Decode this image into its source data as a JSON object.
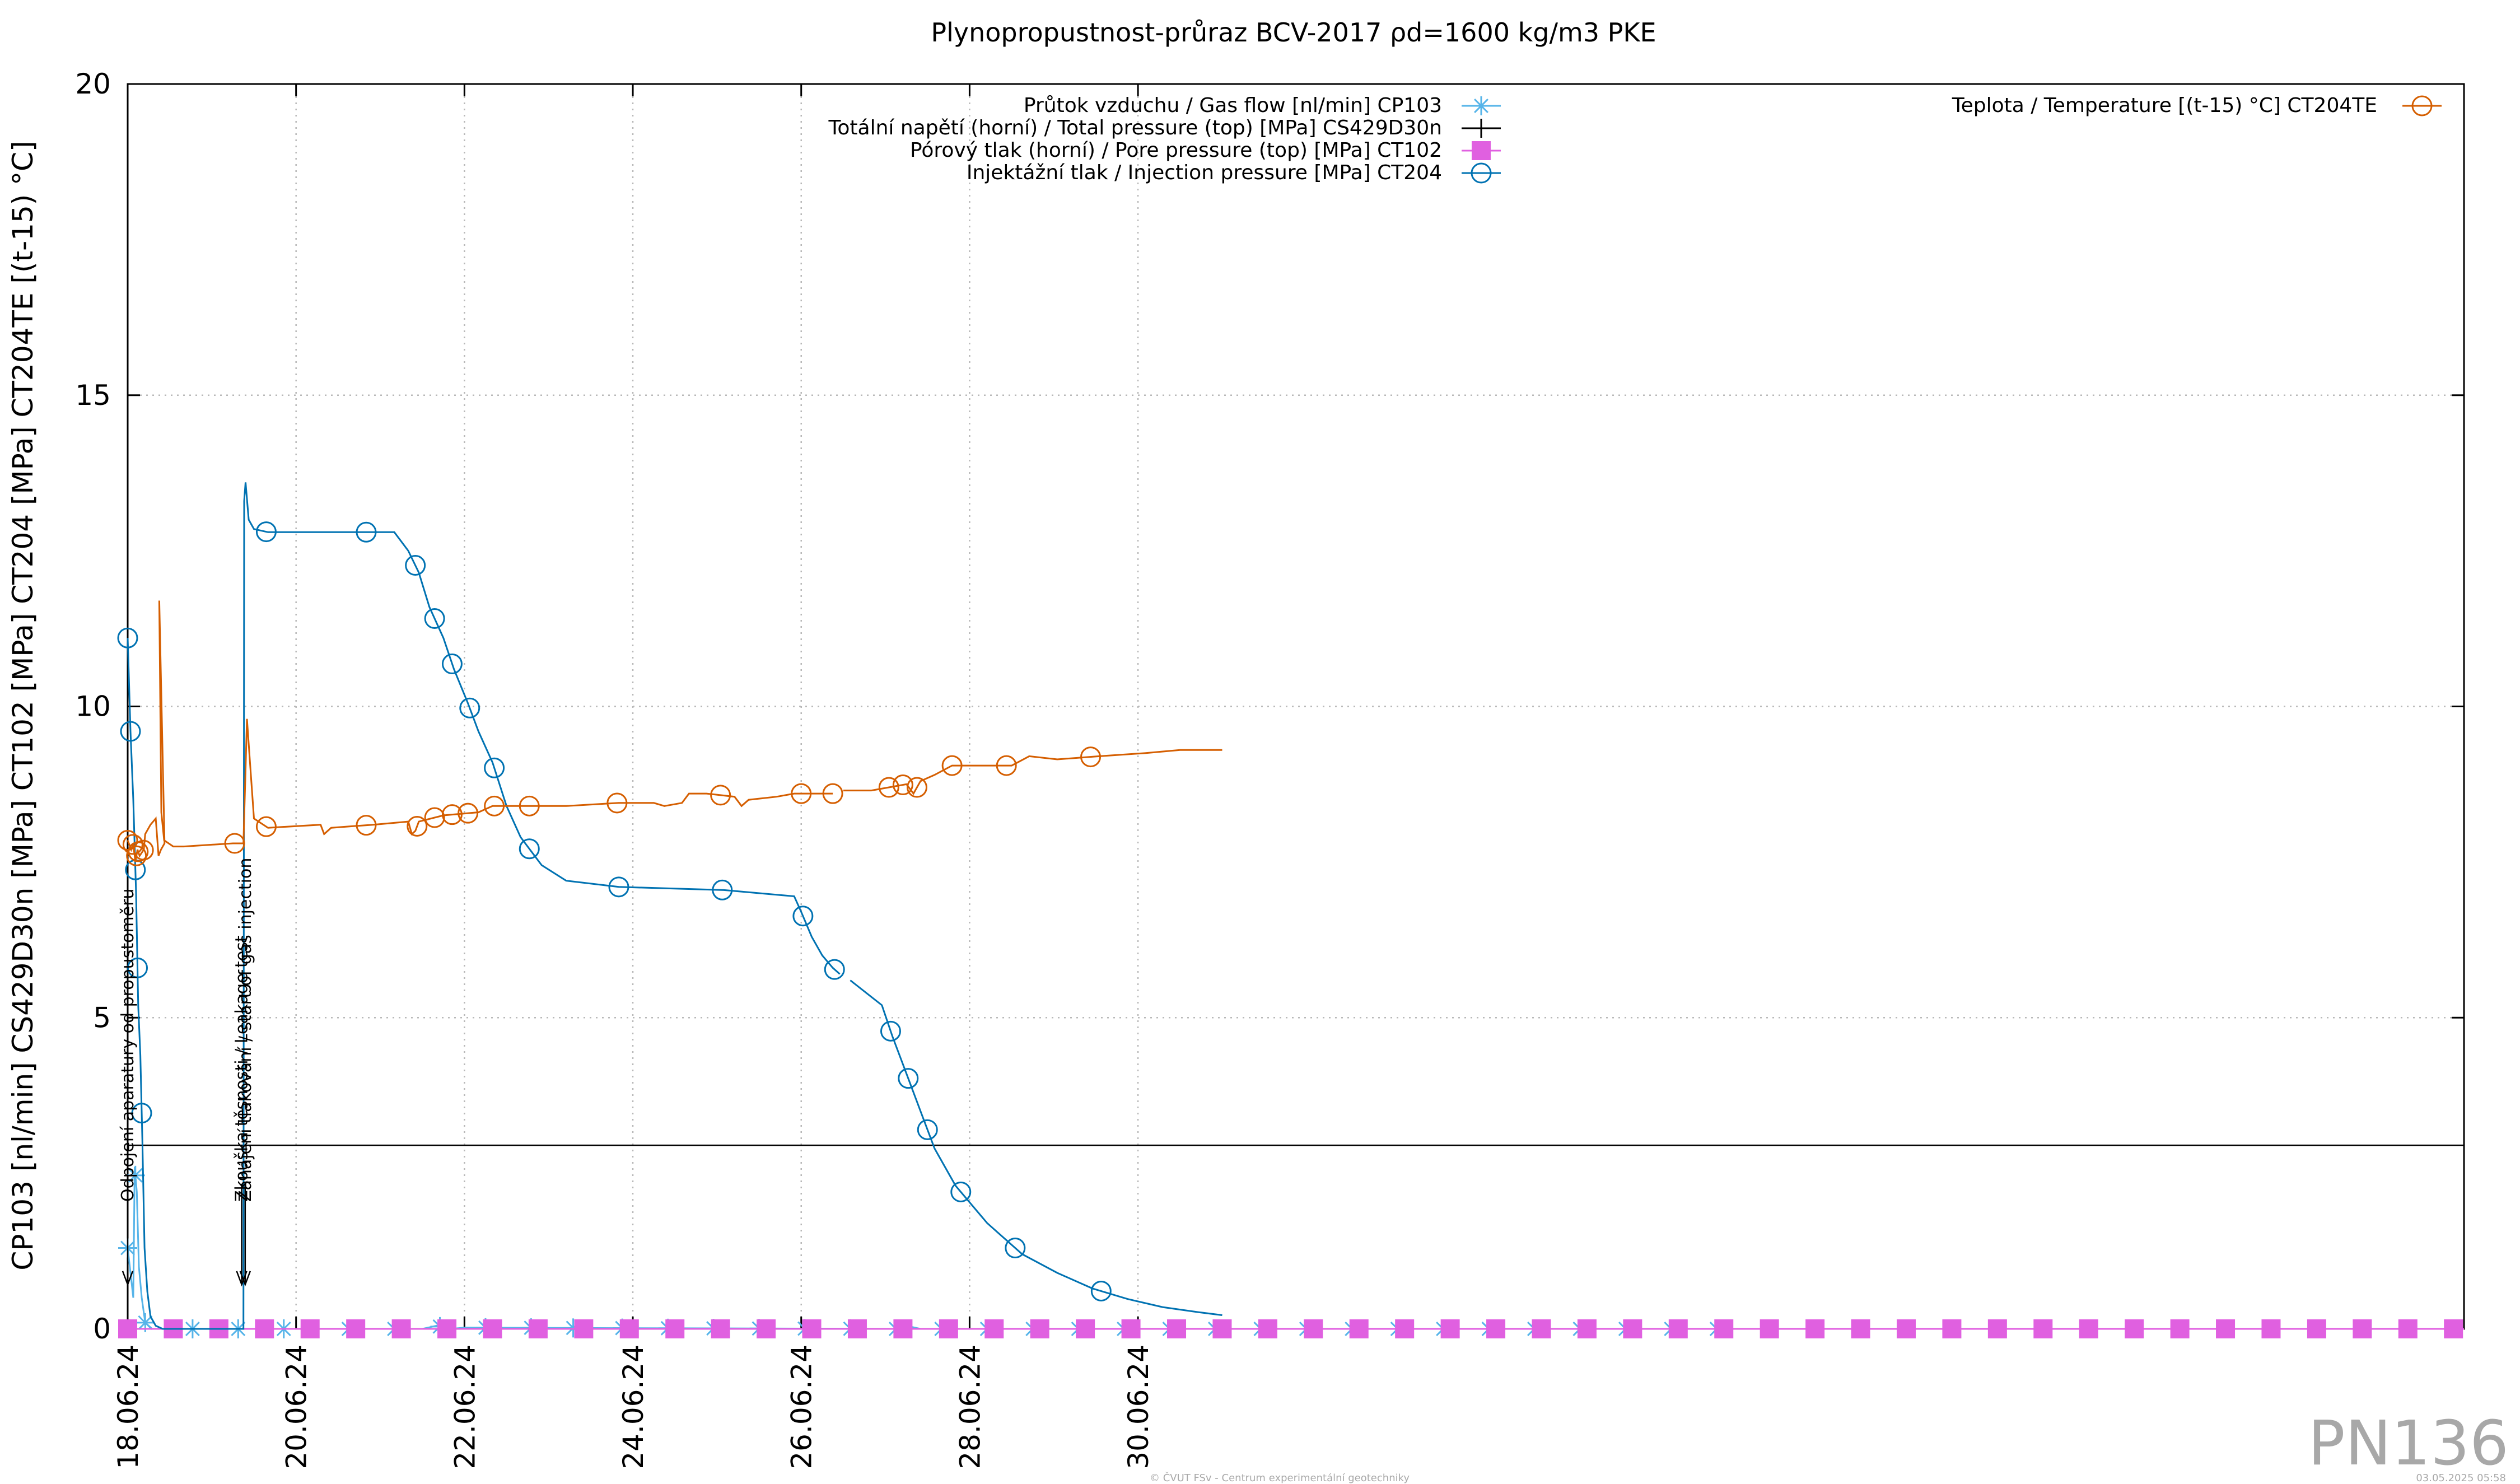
{
  "chart_data": {
    "type": "line",
    "title": "Plynopropustnost-průraz BCV-2017 ρd=1600 kg/m3 PKE",
    "ylabel": "CP103 [nl/min] CS429D30n [MPa] CT102 [MPa] CT204 [MPa] CT204TE [(t-15) °C]",
    "xlabel": "",
    "xlim": [
      0,
      666
    ],
    "ylim": [
      0,
      20
    ],
    "x_unit": "hours from 18.06.24 00:00",
    "x_ticks": [
      {
        "x": 0,
        "label": "18.06.24"
      },
      {
        "x": 48,
        "label": "20.06.24"
      },
      {
        "x": 96,
        "label": "22.06.24"
      },
      {
        "x": 144,
        "label": "24.06.24"
      },
      {
        "x": 192,
        "label": "26.06.24"
      },
      {
        "x": 240,
        "label": "28.06.24"
      },
      {
        "x": 288,
        "label": "30.06.24"
      }
    ],
    "y_ticks": [
      {
        "y": 0,
        "label": "0"
      },
      {
        "y": 5,
        "label": "5"
      },
      {
        "y": 10,
        "label": "10"
      },
      {
        "y": 15,
        "label": "15"
      },
      {
        "y": 20,
        "label": "20"
      }
    ],
    "grid": true,
    "legend_position": "top",
    "series": [
      {
        "name": "Průtok vzduchu / Gas flow [nl/min] CP103",
        "color": "#56b4e9",
        "marker": "star",
        "legend_group": "left",
        "points": [
          [
            0,
            1.3
          ],
          [
            1,
            0.8
          ],
          [
            1.6,
            0.5
          ],
          [
            2,
            2.6
          ],
          [
            2.6,
            2.2
          ],
          [
            3.2,
            1.0
          ],
          [
            4,
            0.5
          ],
          [
            5,
            0.1
          ],
          [
            7,
            0
          ],
          [
            50,
            0
          ],
          [
            84,
            0
          ],
          [
            88,
            0.05
          ],
          [
            92,
            0
          ],
          [
            96,
            0.02
          ],
          [
            220,
            0
          ],
          [
            222,
            0.05
          ],
          [
            226,
            0
          ],
          [
            232,
            0
          ]
        ],
        "marker_x": [
          0,
          2.2,
          5,
          18.5,
          31.5,
          44.5,
          63,
          76,
          89,
          102,
          115,
          127,
          141,
          154,
          167,
          180,
          193,
          206,
          219,
          232,
          245,
          258,
          271,
          284,
          297,
          310,
          323,
          336,
          349,
          362,
          375,
          388,
          401,
          414,
          427,
          440,
          453
        ]
      },
      {
        "name": "Totální napětí (horní) / Total pressure (top) [MPa] CS429D30n",
        "color": "#000000",
        "marker": "plus",
        "legend_group": "left",
        "points": [
          [
            0,
            2.95
          ],
          [
            666,
            2.95
          ]
        ],
        "marker_x": []
      },
      {
        "name": "Pórový tlak (horní) / Pore pressure (top) [MPa] CT102",
        "color": "#e060e0",
        "marker": "square",
        "legend_group": "left",
        "points": [
          [
            0,
            0
          ],
          [
            666,
            0
          ]
        ],
        "marker_x": [
          0,
          13,
          26,
          39,
          52,
          65,
          78,
          91,
          104,
          117,
          130,
          143,
          156,
          169,
          182,
          195,
          208,
          221,
          234,
          247,
          260,
          273,
          286,
          299,
          312,
          325,
          338,
          351,
          364,
          377,
          390,
          403,
          416,
          429,
          442,
          455,
          468,
          481,
          494,
          507,
          520,
          533,
          546,
          559,
          572,
          585,
          598,
          611,
          624,
          637,
          650,
          663
        ]
      },
      {
        "name": "Injektážní tlak / Injection pressure [MPa] CT204",
        "color": "#0072b2",
        "marker": "circle",
        "legend_group": "left",
        "points": [
          [
            0,
            11.1
          ],
          [
            0.8,
            9.6
          ],
          [
            1.6,
            8.5
          ],
          [
            2.4,
            7.0
          ],
          [
            3.0,
            5.2
          ],
          [
            3.6,
            4.4
          ],
          [
            4.2,
            3.0
          ],
          [
            4.8,
            1.3
          ],
          [
            5.6,
            0.6
          ],
          [
            6.5,
            0.2
          ],
          [
            8,
            0.05
          ],
          [
            10,
            0
          ],
          [
            33,
            0
          ],
          [
            33.2,
            13.3
          ],
          [
            33.6,
            13.6
          ],
          [
            34.5,
            13.0
          ],
          [
            36,
            12.85
          ],
          [
            40,
            12.8
          ],
          [
            68,
            12.8
          ],
          [
            76,
            12.8
          ],
          [
            80,
            12.5
          ],
          [
            83,
            12.15
          ],
          [
            86,
            11.6
          ],
          [
            90,
            11.1
          ],
          [
            93,
            10.6
          ],
          [
            97,
            10.05
          ],
          [
            100,
            9.6
          ],
          [
            104,
            9.1
          ],
          [
            108,
            8.4
          ],
          [
            112,
            7.9
          ],
          [
            118,
            7.45
          ],
          [
            125,
            7.2
          ],
          [
            140,
            7.1
          ],
          [
            170,
            7.05
          ],
          [
            190,
            6.95
          ],
          [
            192,
            6.7
          ],
          [
            195,
            6.3
          ],
          [
            198,
            6.0
          ],
          [
            201,
            5.8
          ],
          [
            203,
            5.7
          ]
        ],
        "segments2": [
          [
            206,
            5.6
          ],
          [
            215,
            5.2
          ],
          [
            218,
            4.7
          ],
          [
            222,
            4.1
          ],
          [
            226,
            3.5
          ],
          [
            230,
            2.9
          ],
          [
            236,
            2.3
          ],
          [
            245,
            1.7
          ],
          [
            255,
            1.2
          ],
          [
            265,
            0.9
          ],
          [
            275,
            0.65
          ],
          [
            285,
            0.48
          ],
          [
            295,
            0.35
          ],
          [
            305,
            0.27
          ],
          [
            312,
            0.22
          ]
        ],
        "marker_x": [
          0,
          0.8,
          2.2,
          2.8,
          4.0,
          39.5,
          68,
          82,
          87.5,
          92.5,
          97.5,
          104.5,
          114.5,
          140,
          169.5,
          192.5,
          201.5,
          217.5,
          222.5,
          228,
          237.5,
          253,
          277.5
        ]
      },
      {
        "name": "Teplota / Temperature [(t-15) °C] CT204TE",
        "color": "#d55e00",
        "marker": "circle",
        "legend_group": "right",
        "points": [
          [
            0,
            7.85
          ],
          [
            1,
            7.7
          ],
          [
            1.6,
            7.8
          ],
          [
            2.2,
            7.5
          ],
          [
            2.8,
            7.7
          ],
          [
            3.4,
            7.6
          ],
          [
            4,
            7.65
          ],
          [
            4.6,
            7.7
          ],
          [
            5,
            7.95
          ],
          [
            6.5,
            8.1
          ],
          [
            8,
            8.2
          ],
          [
            8.8,
            7.6
          ],
          [
            9.5,
            7.7
          ],
          [
            10.5,
            7.8
          ],
          [
            9,
            11.7
          ],
          [
            9.6,
            8.3
          ],
          [
            10.4,
            7.85
          ],
          [
            13,
            7.75
          ],
          [
            16,
            7.75
          ],
          [
            30,
            7.8
          ],
          [
            33,
            7.8
          ],
          [
            33.5,
            8.8
          ],
          [
            34,
            9.8
          ],
          [
            35,
            9.0
          ],
          [
            36,
            8.2
          ],
          [
            40,
            8.05
          ],
          [
            55,
            8.1
          ],
          [
            56,
            7.95
          ],
          [
            58,
            8.05
          ],
          [
            70,
            8.1
          ],
          [
            80,
            8.15
          ],
          [
            81,
            7.95
          ],
          [
            82,
            8.0
          ],
          [
            83,
            8.15
          ],
          [
            90,
            8.25
          ],
          [
            100,
            8.3
          ],
          [
            104,
            8.4
          ],
          [
            110,
            8.4
          ],
          [
            125,
            8.4
          ],
          [
            140,
            8.45
          ],
          [
            150,
            8.45
          ],
          [
            153,
            8.4
          ],
          [
            158,
            8.45
          ],
          [
            160,
            8.6
          ],
          [
            165,
            8.6
          ],
          [
            173,
            8.55
          ],
          [
            175,
            8.4
          ],
          [
            177,
            8.5
          ],
          [
            185,
            8.55
          ],
          [
            190,
            8.6
          ],
          [
            195,
            8.6
          ],
          [
            200,
            8.6
          ],
          [
            201,
            8.6
          ]
        ],
        "segments2": [
          [
            204,
            8.65
          ],
          [
            212,
            8.65
          ],
          [
            217,
            8.7
          ],
          [
            222,
            8.75
          ],
          [
            224,
            8.6
          ],
          [
            226,
            8.8
          ],
          [
            230,
            8.9
          ],
          [
            235,
            9.05
          ],
          [
            240,
            9.05
          ],
          [
            252,
            9.05
          ],
          [
            257,
            9.2
          ],
          [
            265,
            9.15
          ],
          [
            277,
            9.2
          ],
          [
            290,
            9.25
          ],
          [
            300,
            9.3
          ],
          [
            312,
            9.3
          ]
        ],
        "marker_x": [
          0,
          1.5,
          2.5,
          3.0,
          4.5,
          30.5,
          39.5,
          68,
          82.5,
          87.5,
          92.5,
          97,
          104.5,
          114.5,
          139.5,
          169,
          192,
          201,
          217,
          221,
          225,
          235,
          250.5,
          274.5
        ]
      }
    ],
    "annotations": [
      {
        "x": 0,
        "y": 1.0,
        "text": "Odpojení aparatury od propustoměru"
      },
      {
        "x": 32.5,
        "y": 1.0,
        "text": "Zkouška těsnosti / Leakage test"
      },
      {
        "x": 33.5,
        "y": 1.0,
        "text": "Zahájení tlakování / start of gas injection"
      }
    ]
  },
  "watermark": "PN136",
  "footer_center": "© ČVUT FSv - Centrum experimentální geotechniky",
  "footer_right": "03.05.2025 05:58"
}
